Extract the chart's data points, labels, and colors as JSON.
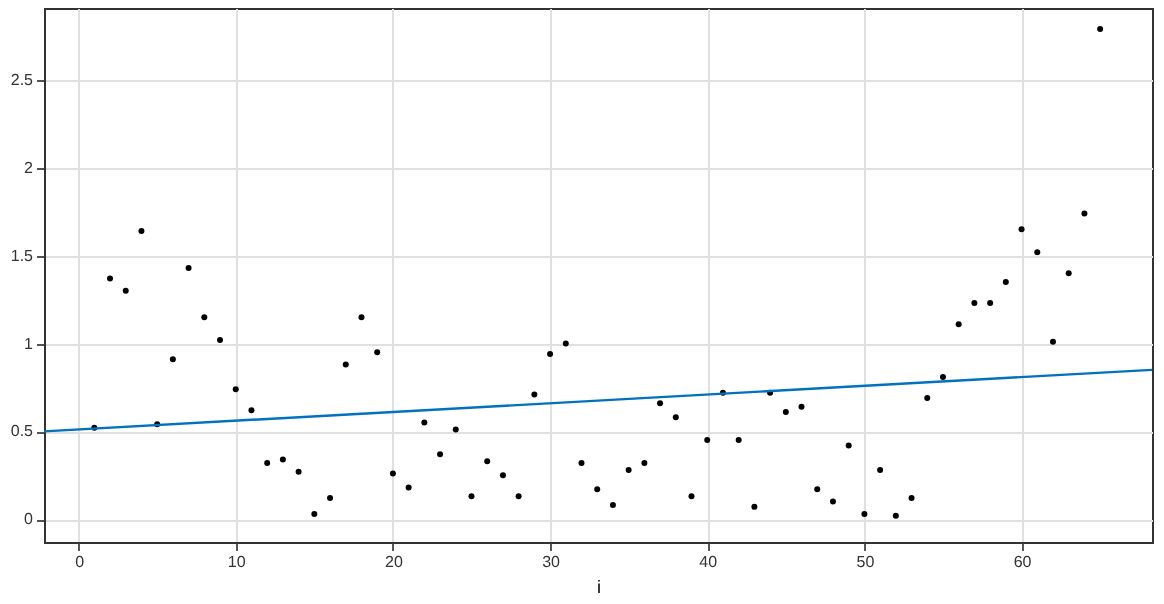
{
  "chart_data": {
    "type": "scatter",
    "xlabel": "i",
    "xlim": [
      -2.2,
      68.3
    ],
    "ylim": [
      -0.13,
      2.91
    ],
    "xticks": [
      0,
      10,
      20,
      30,
      40,
      50,
      60
    ],
    "yticks": [
      0,
      0.5,
      1,
      1.5,
      2,
      2.5
    ],
    "grid": true,
    "marker": "circle",
    "x": [
      1,
      2,
      3,
      4,
      5,
      6,
      7,
      8,
      9,
      10,
      11,
      12,
      13,
      14,
      15,
      16,
      17,
      18,
      19,
      20,
      21,
      22,
      23,
      24,
      25,
      26,
      27,
      28,
      29,
      30,
      31,
      32,
      33,
      34,
      35,
      36,
      37,
      38,
      39,
      40,
      41,
      42,
      43,
      44,
      45,
      46,
      47,
      48,
      49,
      50,
      51,
      52,
      53,
      54,
      55,
      56,
      57,
      58,
      59,
      60,
      61,
      62,
      63,
      64,
      65
    ],
    "series": [
      {
        "color": "#000000",
        "values": [
          0.52,
          1.37,
          1.3,
          1.64,
          0.54,
          0.91,
          1.43,
          1.15,
          1.02,
          0.74,
          0.62,
          0.32,
          0.34,
          0.27,
          0.03,
          0.12,
          0.88,
          1.15,
          0.95,
          0.26,
          0.18,
          0.55,
          0.37,
          0.51,
          0.13,
          0.33,
          0.25,
          0.13,
          0.71,
          0.94,
          1.0,
          0.32,
          0.17,
          0.08,
          0.28,
          0.32,
          0.66,
          0.58,
          0.13,
          0.45,
          0.72,
          0.45,
          0.07,
          0.72,
          0.61,
          0.64,
          0.17,
          0.1,
          0.42,
          0.03,
          0.28,
          0.02,
          0.12,
          0.69,
          0.81,
          1.11,
          1.23,
          1.23,
          1.35,
          1.65,
          1.52,
          1.01,
          1.4,
          1.74,
          2.79
        ]
      },
      {
        "type": "line",
        "marker": "none",
        "color": "#0072bd",
        "line_style": "solid",
        "x": [
          -2.2,
          68.3
        ],
        "values": [
          0.5,
          0.85
        ]
      }
    ]
  }
}
